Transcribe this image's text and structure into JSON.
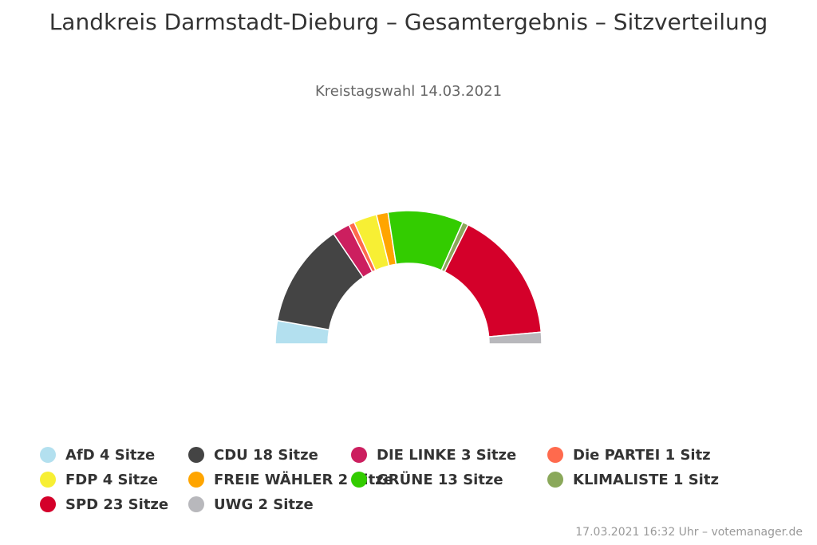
{
  "title": "Landkreis Darmstadt-Dieburg – Gesamtergebnis – Sitzverteilung",
  "subtitle": "Kreistagswahl 14.03.2021",
  "credit": "17.03.2021 16:32 Uhr – votemanager.de",
  "chart_data": {
    "type": "pie",
    "variant": "semicircle",
    "unit": "Sitze",
    "slices": [
      {
        "name": "AfD",
        "value": 4,
        "label": "AfD 4 Sitze",
        "color": "#b3e0ef"
      },
      {
        "name": "CDU",
        "value": 18,
        "label": "CDU 18 Sitze",
        "color": "#444444"
      },
      {
        "name": "DIE LINKE",
        "value": 3,
        "label": "DIE LINKE 3 Sitze",
        "color": "#cc1f5f"
      },
      {
        "name": "Die PARTEI",
        "value": 1,
        "label": "Die PARTEI 1 Sitz",
        "color": "#ff6a4d"
      },
      {
        "name": "FDP",
        "value": 4,
        "label": "FDP 4 Sitze",
        "color": "#f7ef34"
      },
      {
        "name": "FREIE WÄHLER",
        "value": 2,
        "label": "FREIE WÄHLER 2 Sitze",
        "color": "#ffa500"
      },
      {
        "name": "GRÜNE",
        "value": 13,
        "label": "GRÜNE 13 Sitze",
        "color": "#33cc00"
      },
      {
        "name": "KLIMALISTE",
        "value": 1,
        "label": "KLIMALISTE 1 Sitz",
        "color": "#8aa85a"
      },
      {
        "name": "SPD",
        "value": 23,
        "label": "SPD 23 Sitze",
        "color": "#d4002a"
      },
      {
        "name": "UWG",
        "value": 2,
        "label": "UWG 2 Sitze",
        "color": "#b8b8bc"
      }
    ],
    "legend": "bottom"
  }
}
